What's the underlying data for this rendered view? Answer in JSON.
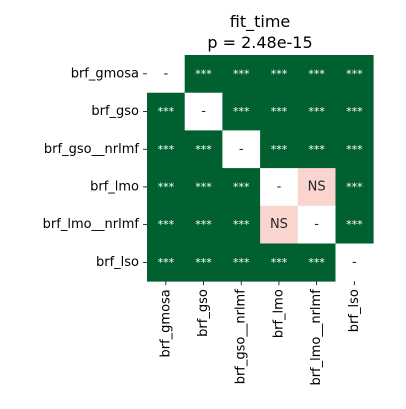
{
  "chart_data": {
    "type": "heatmap",
    "title": "fit_time",
    "subtitle": "p = 2.48e-15",
    "rows": [
      "brf_gmosa",
      "brf_gso",
      "brf_gso__nrlmf",
      "brf_lmo",
      "brf_lmo__nrlmf",
      "brf_lso"
    ],
    "columns": [
      "brf_gmosa",
      "brf_gso",
      "brf_gso__nrlmf",
      "brf_lmo",
      "brf_lmo__nrlmf",
      "brf_lso"
    ],
    "cells": [
      [
        "-",
        "***",
        "***",
        "***",
        "***",
        "***"
      ],
      [
        "***",
        "-",
        "***",
        "***",
        "***",
        "***"
      ],
      [
        "***",
        "***",
        "-",
        "***",
        "***",
        "***"
      ],
      [
        "***",
        "***",
        "***",
        "-",
        "NS",
        "***"
      ],
      [
        "***",
        "***",
        "***",
        "NS",
        "-",
        "***"
      ],
      [
        "***",
        "***",
        "***",
        "***",
        "***",
        "-"
      ]
    ],
    "colors": {
      "significant": "#00602f",
      "not_significant": "#fad4cf",
      "diagonal": "#ffffff",
      "text_on_significant": "#ffffff",
      "text_on_light": "#262626"
    }
  }
}
